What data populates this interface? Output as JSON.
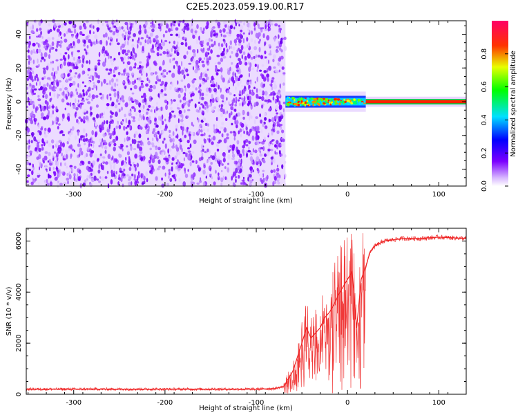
{
  "page": {
    "title": "C2E5.2023.059.19.00.R17"
  },
  "colors": {
    "spectrum_low": "#7b00ff",
    "spectrum_band": "#ff0033",
    "snr_line": "#ee2222",
    "axes": "#000000"
  },
  "chart_data": [
    {
      "type": "heatmap",
      "title": "C2E5.2023.059.19.00.R17",
      "xlabel": "Height of straight line (km)",
      "ylabel": "Frequency (Hz)",
      "xlim": [
        -352,
        130
      ],
      "ylim": [
        -50,
        48
      ],
      "x_ticks": [
        -300,
        -200,
        -100,
        0,
        100
      ],
      "y_ticks": [
        -40,
        -20,
        0,
        20,
        40
      ],
      "x_tick_labels": [
        "-300",
        "-200",
        "-100",
        "0",
        "100"
      ],
      "y_tick_labels": [
        "-40",
        "-20",
        "0",
        "20",
        "40"
      ],
      "regions": [
        {
          "x_range": [
            -352,
            -68
          ],
          "f_range": [
            -50,
            48
          ],
          "amplitude": 0.05,
          "description": "broadband noise"
        },
        {
          "x_range": [
            -68,
            20
          ],
          "f_range": [
            -4,
            4
          ],
          "amplitude": 0.5,
          "description": "emerging carrier"
        },
        {
          "x_range": [
            20,
            130
          ],
          "f_range": [
            -1,
            1
          ],
          "amplitude": 0.95,
          "description": "carrier line"
        }
      ],
      "colorbar": {
        "label": "Normalized spectral amplitude",
        "ticks": [
          0.0,
          0.2,
          0.4,
          0.6,
          0.8
        ],
        "tick_labels": [
          "0.0",
          "0.2",
          "0.4",
          "0.6",
          "0.8"
        ],
        "range": [
          0,
          1
        ]
      },
      "grid": false
    },
    {
      "type": "line",
      "xlabel": "Height of straight line (km)",
      "ylabel": "SNR (10 * v/v)",
      "xlim": [
        -352,
        130
      ],
      "ylim": [
        0,
        6500
      ],
      "x_ticks": [
        -300,
        -200,
        -100,
        0,
        100
      ],
      "y_ticks": [
        0,
        2000,
        4000,
        6000
      ],
      "x_tick_labels": [
        "-300",
        "-200",
        "-100",
        "0",
        "100"
      ],
      "y_tick_labels": [
        "0",
        "2000",
        "4000",
        "6000"
      ],
      "series": [
        {
          "x": [
            -352,
            -300,
            -250,
            -200,
            -150,
            -100,
            -80,
            -70,
            -60,
            -50,
            -45,
            -40,
            -35,
            -30,
            -25,
            -20,
            -15,
            -10,
            -5,
            0,
            5,
            10,
            15,
            20,
            25,
            30,
            35,
            40,
            50,
            60,
            80,
            100,
            130
          ],
          "y": [
            200,
            200,
            200,
            200,
            200,
            200,
            220,
            300,
            900,
            2000,
            2600,
            2200,
            2400,
            2600,
            3000,
            3200,
            3500,
            3900,
            4200,
            4500,
            4800,
            2600,
            4500,
            5000,
            5600,
            5800,
            5900,
            6000,
            6050,
            6100,
            6100,
            6150,
            6100
          ]
        }
      ],
      "grid": false
    }
  ]
}
